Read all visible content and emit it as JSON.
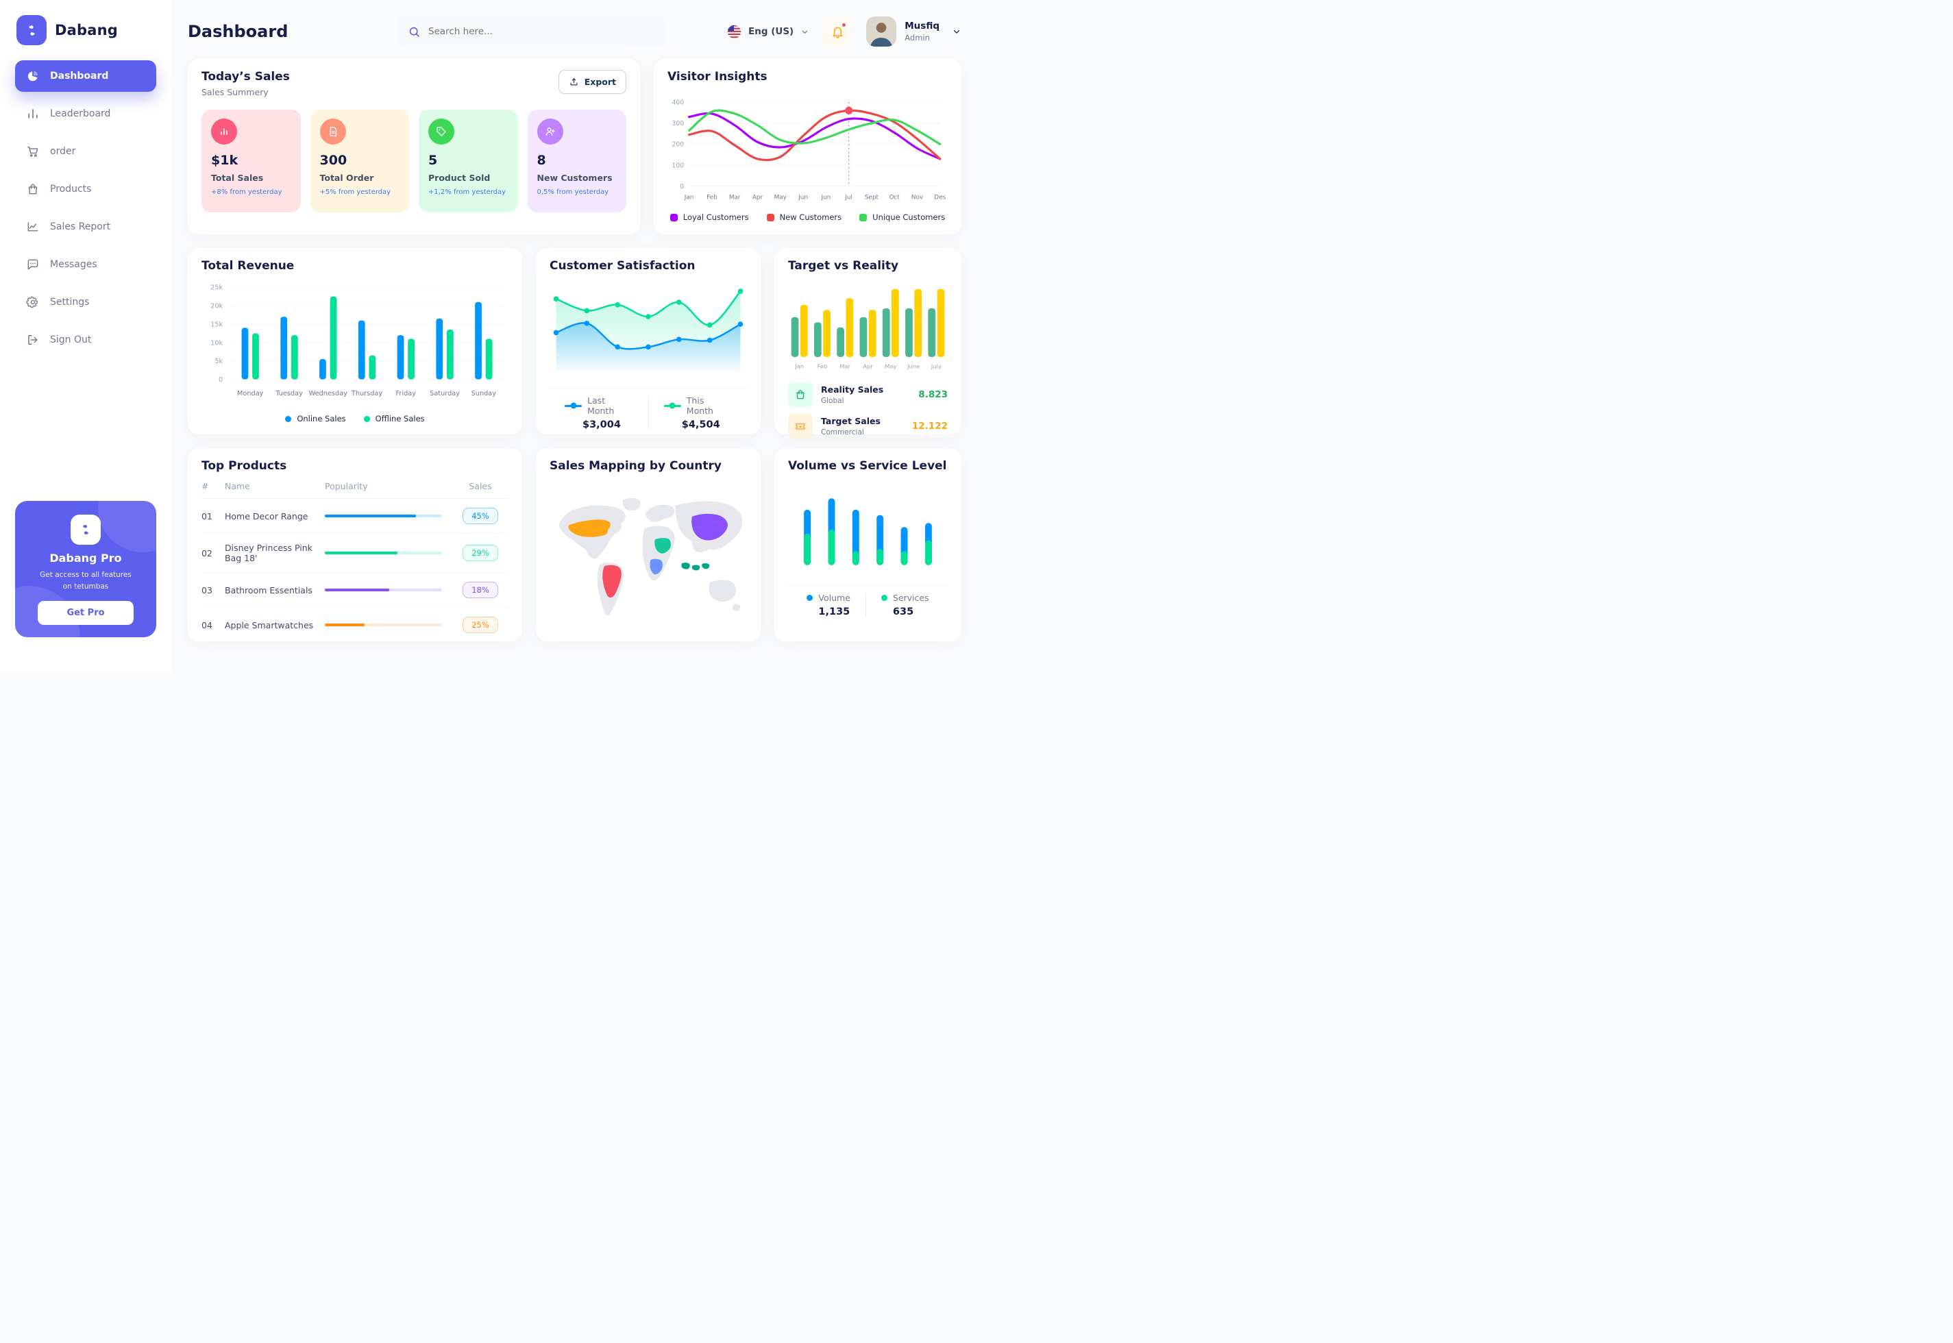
{
  "sidebar": {
    "brand": "Dabang",
    "items": [
      {
        "label": "Dashboard",
        "icon": "pie",
        "active": true
      },
      {
        "label": "Leaderboard",
        "icon": "bars",
        "active": false
      },
      {
        "label": "order",
        "icon": "cart",
        "active": false
      },
      {
        "label": "Products",
        "icon": "bag",
        "active": false
      },
      {
        "label": "Sales Report",
        "icon": "chartline",
        "active": false
      },
      {
        "label": "Messages",
        "icon": "chat",
        "active": false
      },
      {
        "label": "Settings",
        "icon": "gear",
        "active": false
      },
      {
        "label": "Sign Out",
        "icon": "signout",
        "active": false
      }
    ],
    "pro": {
      "title": "Dabang Pro",
      "subtitle": "Get access to all features on tetumbas",
      "button": "Get Pro"
    }
  },
  "header": {
    "title": "Dashboard",
    "search_placeholder": "Search here...",
    "language": "Eng (US)",
    "user": {
      "name": "Musfiq",
      "role": "Admin"
    }
  },
  "todays_sales": {
    "title": "Today’s Sales",
    "subtitle": "Sales Summery",
    "export_label": "Export",
    "cards": [
      {
        "value": "$1k",
        "label": "Total Sales",
        "delta": "+8% from yesterday",
        "bg": "#FFE2E5",
        "iconBg": "#FA5A7D",
        "icon": "stat-bars"
      },
      {
        "value": "300",
        "label": "Total Order",
        "delta": "+5% from yesterday",
        "bg": "#FFF4DE",
        "iconBg": "#FF947A",
        "icon": "file"
      },
      {
        "value": "5",
        "label": "Product Sold",
        "delta": "+1,2% from yesterday",
        "bg": "#DCFCE7",
        "iconBg": "#3CD856",
        "icon": "tag"
      },
      {
        "value": "8",
        "label": "New Customers",
        "delta": "0,5% from yesterday",
        "bg": "#F3E8FF",
        "iconBg": "#BF83FF",
        "icon": "user-plus"
      }
    ]
  },
  "chart_data": [
    {
      "name": "visitor_insights",
      "type": "line",
      "title": "Visitor Insights",
      "x": [
        "Jan",
        "Feb",
        "Mar",
        "Apr",
        "May",
        "Jun",
        "Jun",
        "Jul",
        "Sept",
        "Oct",
        "Nov",
        "Des"
      ],
      "ylim": [
        0,
        400
      ],
      "yticks": [
        0,
        100,
        200,
        300,
        400
      ],
      "grid": true,
      "legend_position": "bottom",
      "series": [
        {
          "name": "Loyal Customers",
          "color": "#A700FF",
          "values": [
            330,
            345,
            290,
            210,
            185,
            215,
            280,
            320,
            310,
            255,
            180,
            130
          ]
        },
        {
          "name": "New Customers",
          "color": "#EF4444",
          "values": [
            245,
            262,
            195,
            130,
            140,
            240,
            330,
            360,
            345,
            305,
            225,
            130
          ]
        },
        {
          "name": "Unique Customers",
          "color": "#3CD856",
          "values": [
            265,
            355,
            345,
            290,
            220,
            205,
            230,
            270,
            300,
            315,
            265,
            200
          ]
        }
      ],
      "highlight": {
        "x_index": 7,
        "series": "New Customers",
        "value": 360
      }
    },
    {
      "name": "total_revenue",
      "type": "bar",
      "title": "Total Revenue",
      "categories": [
        "Monday",
        "Tuesday",
        "Wednesday",
        "Thursday",
        "Friday",
        "Saturday",
        "Sunday"
      ],
      "ylim": [
        0,
        25000
      ],
      "yticks_labels": [
        "0",
        "5k",
        "10k",
        "15k",
        "20k",
        "25k"
      ],
      "grid": true,
      "legend_position": "bottom",
      "series": [
        {
          "name": "Online Sales",
          "color": "#0095FF",
          "values": [
            14000,
            17000,
            5500,
            16000,
            12000,
            16500,
            21000
          ]
        },
        {
          "name": "Offline Sales",
          "color": "#00E096",
          "values": [
            12500,
            12000,
            22500,
            6500,
            11000,
            13500,
            11000
          ]
        }
      ]
    },
    {
      "name": "customer_satisfaction",
      "type": "area",
      "title": "Customer Satisfaction",
      "ylim": [
        0,
        100
      ],
      "legend_position": "bottom",
      "series": [
        {
          "name": "Last Month",
          "color": "#0095FF",
          "total": "$3,004",
          "values": [
            48,
            59,
            31,
            31,
            40,
            39,
            58
          ]
        },
        {
          "name": "This Month",
          "color": "#00E096",
          "total": "$4,504",
          "values": [
            88,
            74,
            81,
            67,
            84,
            57,
            97
          ]
        }
      ]
    },
    {
      "name": "target_vs_reality",
      "type": "bar",
      "title": "Target vs Reality",
      "categories": [
        "Jan",
        "Feb",
        "Mar",
        "Apr",
        "May",
        "June",
        "July"
      ],
      "ylim": [
        0,
        100
      ],
      "legend_position": "bottom-list",
      "series": [
        {
          "name": "Reality Sales",
          "color": "#4AB58E",
          "values": [
            58.6,
            50.9,
            43.4,
            58.6,
            71.6,
            71.6,
            71.6
          ]
        },
        {
          "name": "Target Sales",
          "color": "#FFCF00",
          "values": [
            76.7,
            69.3,
            86.6,
            69.3,
            100,
            100,
            100
          ]
        }
      ],
      "legend": [
        {
          "label": "Reality Sales",
          "sub": "Global",
          "value": "8.823",
          "valueColor": "#27AE60",
          "iconBg": "#E2FFF3",
          "iconColor": "#0FAF62",
          "icon": "bag-sm"
        },
        {
          "label": "Target Sales",
          "sub": "Commercial",
          "value": "12.122",
          "valueColor": "#FFA412",
          "iconBg": "#FFF4DE",
          "iconColor": "#FFA412",
          "icon": "ticket"
        }
      ]
    },
    {
      "name": "volume_service",
      "type": "bar-stacked",
      "title": "Volume vs Service Level",
      "ylim": [
        0,
        100
      ],
      "legend_position": "bottom",
      "series": [
        {
          "name": "Volume",
          "color": "#0095FF",
          "total": "1,135",
          "values": [
            36,
            47,
            62,
            51,
            36,
            26
          ]
        },
        {
          "name": "Services",
          "color": "#00E096",
          "total": "635",
          "values": [
            47,
            53,
            21,
            24,
            21,
            37
          ]
        }
      ]
    }
  ],
  "top_products": {
    "title": "Top Products",
    "columns": [
      "#",
      "Name",
      "Popularity",
      "Sales"
    ],
    "rows": [
      {
        "id": "01",
        "name": "Home Decor Range",
        "popularity": 78,
        "sales": "45%",
        "color": "#0095FF"
      },
      {
        "id": "02",
        "name": "Disney Princess Pink Bag 18'",
        "popularity": 62,
        "sales": "29%",
        "color": "#00E096"
      },
      {
        "id": "03",
        "name": "Bathroom Essentials",
        "popularity": 55,
        "sales": "18%",
        "color": "#884DFF"
      },
      {
        "id": "04",
        "name": "Apple Smartwatches",
        "popularity": 34,
        "sales": "25%",
        "color": "#FF8F0D"
      }
    ]
  },
  "sales_map": {
    "title": "Sales Mapping by Country",
    "countries": [
      {
        "name": "United States",
        "color": "#FFA412"
      },
      {
        "name": "Brazil",
        "color": "#F64E60"
      },
      {
        "name": "China",
        "color": "#8950FC"
      },
      {
        "name": "Saudi Arabia",
        "color": "#16C79A"
      },
      {
        "name": "DR Congo",
        "color": "#6993FF"
      },
      {
        "name": "Indonesia",
        "color": "#00A389"
      }
    ]
  }
}
